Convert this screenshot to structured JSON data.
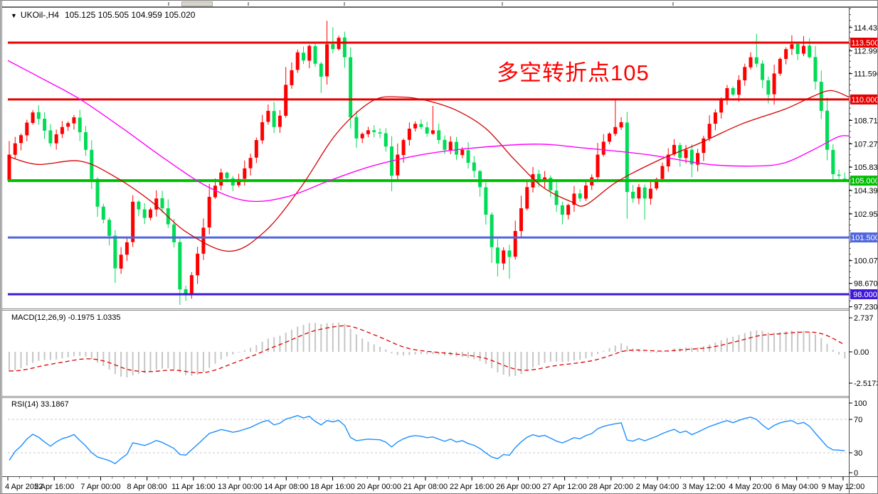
{
  "header": {
    "dropdown_icon": "▼",
    "symbol": "UKOil-,H4",
    "ohlc": "105.125 105.505 104.959 105.020"
  },
  "annotation": {
    "text": "多空转折点105",
    "color": "#FE0000"
  },
  "colors": {
    "candle_up": "#FF0000",
    "candle_down": "#00DC55",
    "ma_red": "#D40000",
    "ma_magenta": "#FF00FF",
    "macd_hist": "#C6C6C6",
    "macd_signal": "#E00000",
    "rsi_line": "#1E8FFF",
    "dashed_level": "#C9C9C9",
    "axis_text": "#000000"
  },
  "chart_data": {
    "type": "candlestick",
    "symbol": "UKOil-",
    "timeframe": "H4",
    "title": "UKOil-,H4",
    "current_ohlc": {
      "open": 105.125,
      "high": 105.505,
      "low": 104.959,
      "close": 105.02
    },
    "bars_total": 143,
    "first_open": 105.0,
    "last_open": 105.125,
    "ylim_main": [
      97.12,
      115.65
    ],
    "price_axis_ticks": [
      114.43,
      112.99,
      111.59,
      108.71,
      107.27,
      105.83,
      104.39,
      102.95,
      100.07,
      98.67,
      97.23
    ],
    "price_axis_labels": [
      "114.430",
      "112.990",
      "111.590",
      "108.710",
      "107.270",
      "105.830",
      "104.390",
      "102.950",
      "100.070",
      "98.670",
      "97.230"
    ],
    "hlines": [
      {
        "price": 113.5,
        "label": "113.500",
        "color": "#E60000",
        "width": 3,
        "text": "#FFFFFF"
      },
      {
        "price": 110.0,
        "label": "110.000",
        "color": "#E60000",
        "width": 3,
        "text": "#FFFFFF"
      },
      {
        "price": 105.0,
        "label": "105.000",
        "color": "#00BE00",
        "width": 4,
        "text": "#FFFFFF"
      },
      {
        "price": 101.5,
        "label": "101.500",
        "color": "#5066DC",
        "width": 3,
        "text": "#FFFFFF"
      },
      {
        "price": 98.0,
        "label": "98.000",
        "color": "#4018D8",
        "width": 3,
        "text": "#FFFFFF"
      }
    ],
    "x_labels": [
      "4 Apr 2022",
      "5 Apr 16:00",
      "7 Apr 00:00",
      "8 Apr 08:00",
      "11 Apr 16:00",
      "13 Apr 00:00",
      "14 Apr 08:00",
      "18 Apr 16:00",
      "20 Apr 00:00",
      "21 Apr 08:00",
      "22 Apr 16:00",
      "26 Apr 00:00",
      "27 Apr 12:00",
      "28 Apr 20:00",
      "2 May 04:00",
      "3 May 12:00",
      "4 May 20:00",
      "6 May 04:00",
      "9 May 12:00"
    ],
    "close_anchors": [
      [
        0,
        106.6
      ],
      [
        2,
        107.8
      ],
      [
        4,
        109.2
      ],
      [
        5,
        108.8
      ],
      [
        7,
        107.3
      ],
      [
        9,
        108.3
      ],
      [
        11,
        108.9
      ],
      [
        13,
        106.9
      ],
      [
        15,
        103.4
      ],
      [
        17,
        101.6
      ],
      [
        18,
        99.6
      ],
      [
        20,
        101.2
      ],
      [
        21,
        103.7
      ],
      [
        23,
        102.7
      ],
      [
        25,
        103.9
      ],
      [
        26,
        103.3
      ],
      [
        28,
        101.2
      ],
      [
        29,
        98.3
      ],
      [
        30,
        98.0
      ],
      [
        32,
        100.5
      ],
      [
        33,
        102.1
      ],
      [
        34,
        104.0
      ],
      [
        36,
        105.5
      ],
      [
        38,
        104.7
      ],
      [
        39,
        105.1
      ],
      [
        41,
        106.4
      ],
      [
        43,
        108.6
      ],
      [
        44,
        109.3
      ],
      [
        45,
        108.3
      ],
      [
        46,
        109.0
      ],
      [
        47,
        110.9
      ],
      [
        48,
        111.8
      ],
      [
        49,
        112.9
      ],
      [
        50,
        112.4
      ],
      [
        51,
        113.3
      ],
      [
        52,
        112.2
      ],
      [
        53,
        111.4
      ],
      [
        54,
        113.4
      ],
      [
        55,
        113.1
      ],
      [
        56,
        113.8
      ],
      [
        57,
        112.6
      ],
      [
        58,
        108.9
      ],
      [
        59,
        107.6
      ],
      [
        61,
        108.1
      ],
      [
        63,
        107.9
      ],
      [
        64,
        107.1
      ],
      [
        65,
        105.3
      ],
      [
        66,
        106.6
      ],
      [
        67,
        107.5
      ],
      [
        68,
        108.2
      ],
      [
        69,
        108.5
      ],
      [
        70,
        108.3
      ],
      [
        71,
        107.9
      ],
      [
        72,
        108.1
      ],
      [
        73,
        107.5
      ],
      [
        74,
        106.9
      ],
      [
        75,
        107.4
      ],
      [
        76,
        106.6
      ],
      [
        77,
        106.9
      ],
      [
        78,
        106.1
      ],
      [
        79,
        105.6
      ],
      [
        80,
        104.6
      ],
      [
        81,
        102.9
      ],
      [
        82,
        100.9
      ],
      [
        83,
        99.9
      ],
      [
        84,
        100.7
      ],
      [
        85,
        100.3
      ],
      [
        86,
        101.9
      ],
      [
        87,
        103.3
      ],
      [
        88,
        104.6
      ],
      [
        89,
        105.4
      ],
      [
        90,
        104.9
      ],
      [
        91,
        105.2
      ],
      [
        92,
        104.4
      ],
      [
        93,
        103.5
      ],
      [
        94,
        102.9
      ],
      [
        95,
        103.5
      ],
      [
        96,
        104.2
      ],
      [
        97,
        103.9
      ],
      [
        98,
        104.7
      ],
      [
        99,
        105.2
      ],
      [
        100,
        106.6
      ],
      [
        101,
        107.4
      ],
      [
        102,
        107.9
      ],
      [
        103,
        108.3
      ],
      [
        104,
        108.6
      ],
      [
        105,
        104.3
      ],
      [
        106,
        103.9
      ],
      [
        107,
        104.6
      ],
      [
        108,
        103.9
      ],
      [
        109,
        104.5
      ],
      [
        110,
        105.1
      ],
      [
        111,
        105.9
      ],
      [
        112,
        106.6
      ],
      [
        113,
        107.2
      ],
      [
        114,
        106.4
      ],
      [
        115,
        106.9
      ],
      [
        116,
        106.0
      ],
      [
        117,
        106.7
      ],
      [
        118,
        107.6
      ],
      [
        119,
        108.5
      ],
      [
        120,
        109.2
      ],
      [
        121,
        110.0
      ],
      [
        122,
        110.7
      ],
      [
        123,
        110.3
      ],
      [
        124,
        111.2
      ],
      [
        125,
        112.0
      ],
      [
        126,
        112.6
      ],
      [
        127,
        112.2
      ],
      [
        128,
        111.2
      ],
      [
        129,
        110.3
      ],
      [
        130,
        111.6
      ],
      [
        131,
        112.5
      ],
      [
        132,
        113.1
      ],
      [
        133,
        113.4
      ],
      [
        134,
        112.8
      ],
      [
        135,
        113.3
      ],
      [
        136,
        112.6
      ],
      [
        137,
        111.1
      ],
      [
        138,
        109.3
      ],
      [
        139,
        106.9
      ],
      [
        140,
        105.4
      ],
      [
        141,
        105.3
      ],
      [
        142,
        105.02
      ]
    ],
    "wick_events": [
      {
        "i": 18,
        "low": 98.7
      },
      {
        "i": 29,
        "low": 97.35
      },
      {
        "i": 30,
        "low": 97.6
      },
      {
        "i": 47,
        "high": 112.0
      },
      {
        "i": 53,
        "low": 110.4
      },
      {
        "i": 54,
        "high": 114.85
      },
      {
        "i": 55,
        "high": 114.45
      },
      {
        "i": 65,
        "low": 104.35
      },
      {
        "i": 72,
        "high": 109.6
      },
      {
        "i": 83,
        "low": 99.1
      },
      {
        "i": 85,
        "low": 98.95
      },
      {
        "i": 94,
        "low": 102.3
      },
      {
        "i": 103,
        "high": 109.95
      },
      {
        "i": 108,
        "low": 102.6
      },
      {
        "i": 116,
        "low": 105.2
      },
      {
        "i": 127,
        "high": 114.05
      },
      {
        "i": 133,
        "high": 113.95
      },
      {
        "i": 135,
        "high": 113.9
      },
      {
        "i": 140,
        "low": 104.9
      },
      {
        "i": 142,
        "high": 105.505,
        "low": 104.959
      }
    ],
    "ma_red": [
      [
        8,
        106.5
      ],
      [
        50,
        106.0
      ],
      [
        110,
        106.2
      ],
      [
        160,
        105.2
      ],
      [
        210,
        103.7
      ],
      [
        260,
        101.8
      ],
      [
        320,
        100.65
      ],
      [
        370,
        101.9
      ],
      [
        420,
        104.6
      ],
      [
        470,
        107.9
      ],
      [
        520,
        109.9
      ],
      [
        560,
        110.15
      ],
      [
        600,
        109.9
      ],
      [
        640,
        109.3
      ],
      [
        680,
        108.2
      ],
      [
        720,
        106.3
      ],
      [
        760,
        104.6
      ],
      [
        800,
        103.7
      ],
      [
        820,
        103.5
      ],
      [
        863,
        104.9
      ],
      [
        920,
        106.2
      ],
      [
        980,
        107.3
      ],
      [
        1040,
        108.5
      ],
      [
        1100,
        109.4
      ],
      [
        1140,
        110.2
      ],
      [
        1165,
        110.55
      ],
      [
        1190,
        110.15
      ]
    ],
    "ma_magenta": [
      [
        8,
        112.4
      ],
      [
        60,
        111.2
      ],
      [
        110,
        110.0
      ],
      [
        170,
        108.2
      ],
      [
        230,
        106.3
      ],
      [
        290,
        104.6
      ],
      [
        345,
        103.75
      ],
      [
        400,
        104.0
      ],
      [
        460,
        105.0
      ],
      [
        520,
        105.9
      ],
      [
        590,
        106.6
      ],
      [
        660,
        107.0
      ],
      [
        750,
        107.25
      ],
      [
        820,
        107.0
      ],
      [
        907,
        106.6
      ],
      [
        993,
        106.0
      ],
      [
        1060,
        105.9
      ],
      [
        1100,
        106.1
      ],
      [
        1140,
        106.9
      ],
      [
        1175,
        107.7
      ],
      [
        1190,
        107.75
      ]
    ],
    "macd": {
      "label": "MACD(12,26,9) -0.1975 1.0335",
      "params": [
        12,
        26,
        9
      ],
      "last_main": -0.1975,
      "last_signal": 1.0335,
      "ticks": [
        [
          "2.737",
          2.737
        ],
        [
          "0.00",
          0.0
        ],
        [
          "-2.5173",
          -2.5173
        ]
      ]
    },
    "rsi": {
      "label": "RSI(14) 33.1867",
      "period": 14,
      "last": 33.1867,
      "levels": [
        70,
        30
      ],
      "ticks": [
        [
          "100",
          100
        ],
        [
          "70",
          70
        ],
        [
          "30",
          30
        ],
        [
          "0",
          0
        ]
      ]
    }
  }
}
